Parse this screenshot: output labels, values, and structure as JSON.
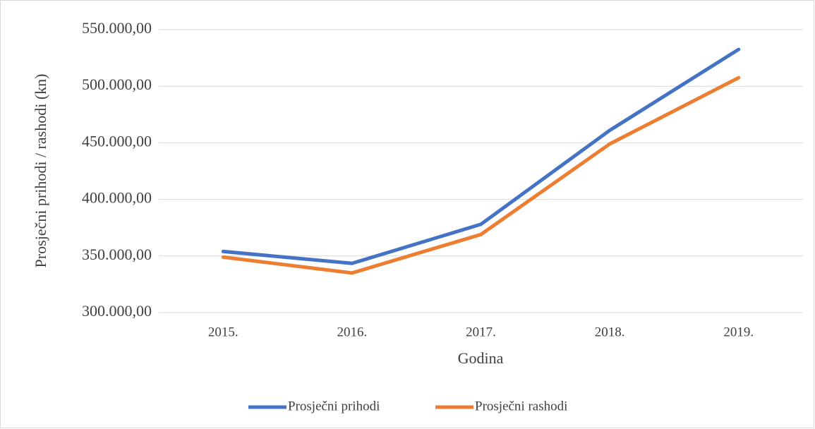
{
  "chart_data": {
    "type": "line",
    "x_label": "Godina",
    "y_label": "Prosječni prihodi / rashodi (kn)",
    "categories": [
      "2015.",
      "2016.",
      "2017.",
      "2018.",
      "2019."
    ],
    "series": [
      {
        "name": "Prosječni prihodi",
        "color": "#4472c4",
        "values": [
          354000,
          343500,
          378000,
          461000,
          532500
        ]
      },
      {
        "name": "Prosječni rashodi",
        "color": "#ed7d31",
        "values": [
          349000,
          335000,
          369000,
          449000,
          507500
        ]
      }
    ],
    "ylim": [
      300000,
      550000
    ],
    "yticks": [
      {
        "value": 300000,
        "label": "300.000,00"
      },
      {
        "value": 350000,
        "label": "350.000,00"
      },
      {
        "value": 400000,
        "label": "400.000,00"
      },
      {
        "value": 450000,
        "label": "450.000,00"
      },
      {
        "value": 500000,
        "label": "500.000,00"
      },
      {
        "value": 550000,
        "label": "550.000,00"
      }
    ],
    "grid": true,
    "legend": "bottom"
  }
}
